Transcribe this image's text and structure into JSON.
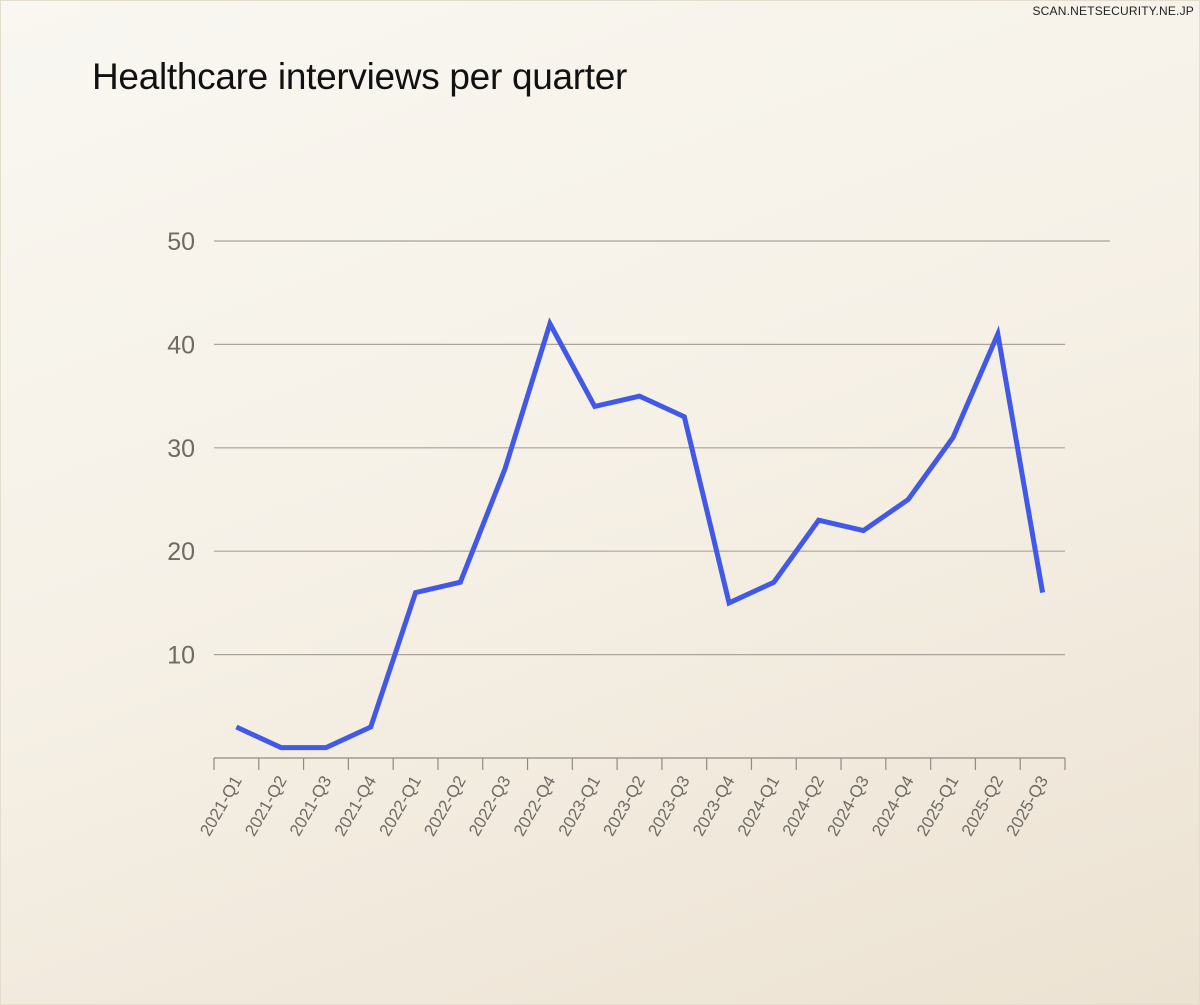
{
  "watermark": "SCAN.NETSECURITY.NE.JP",
  "chart_data": {
    "type": "line",
    "title": "Healthcare interviews per quarter",
    "xlabel": "",
    "ylabel": "",
    "ylim": [
      0,
      50
    ],
    "yticks": [
      10,
      20,
      30,
      40,
      50
    ],
    "grid": true,
    "categories": [
      "2021-Q1",
      "2021-Q2",
      "2021-Q3",
      "2021-Q4",
      "2022-Q1",
      "2022-Q2",
      "2022-Q3",
      "2022-Q4",
      "2023-Q1",
      "2023-Q2",
      "2023-Q3",
      "2023-Q4",
      "2024-Q1",
      "2024-Q2",
      "2024-Q3",
      "2024-Q4",
      "2025-Q1",
      "2025-Q2",
      "2025-Q3"
    ],
    "series": [
      {
        "name": "Healthcare interviews",
        "color": "#4259e8",
        "values": [
          3,
          1,
          1,
          3,
          16,
          17,
          28,
          42,
          34,
          35,
          33,
          15,
          17,
          23,
          22,
          25,
          31,
          41,
          16
        ]
      }
    ]
  }
}
